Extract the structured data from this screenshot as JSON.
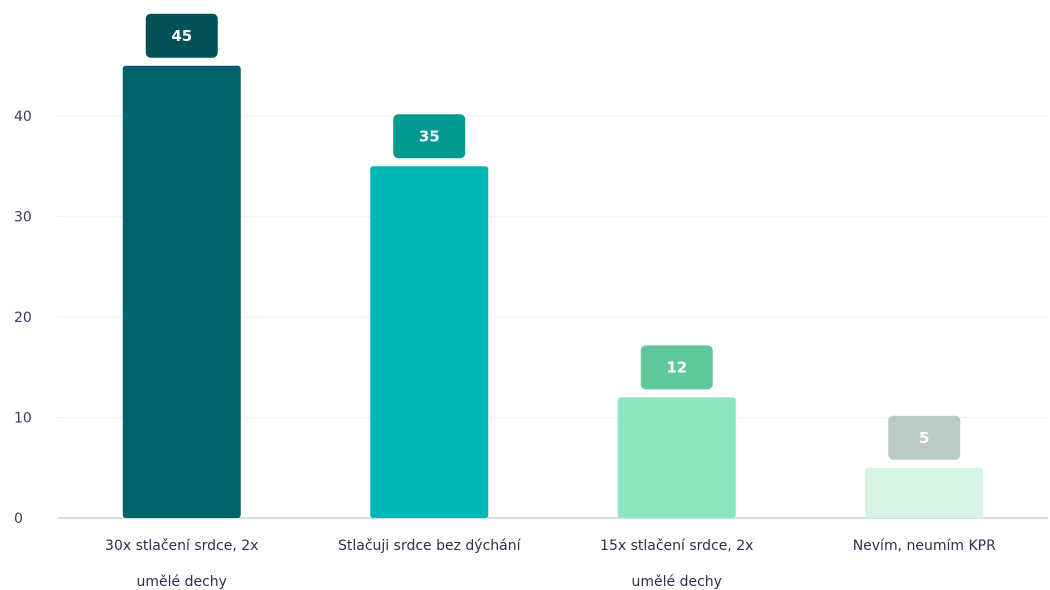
{
  "chart_data": {
    "type": "bar",
    "categories": [
      [
        "30x stlačení srdce, 2x",
        "umělé dechy"
      ],
      [
        "Stlačuji srdce bez dýchání"
      ],
      [
        "15x stlačení srdce, 2x",
        "umělé dechy"
      ],
      [
        "Nevím, neumím KPR"
      ]
    ],
    "values": [
      45,
      35,
      12,
      5
    ],
    "value_labels": [
      "45",
      "35",
      "12",
      "5"
    ],
    "bar_colors": [
      "#00626b",
      "#00b8b3",
      "#8ce6bf",
      "#d9f2e6"
    ],
    "label_colors": [
      "#005158",
      "#00998f",
      "#5ec79b",
      "#b9ccc3"
    ],
    "yticks": [
      "0",
      "10",
      "20",
      "30",
      "40"
    ],
    "ytick_values": [
      0,
      10,
      20,
      30,
      40
    ],
    "ylim": [
      0,
      45
    ],
    "grid": true,
    "title": "",
    "xlabel": "",
    "ylabel": ""
  }
}
